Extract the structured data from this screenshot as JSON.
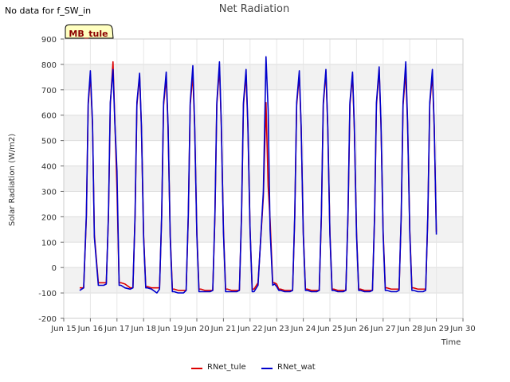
{
  "page": {
    "note": "No data for f_SW_in",
    "badge": "MB_tule"
  },
  "chart_data": {
    "type": "line",
    "title": "Net Radiation",
    "xlabel": "Time",
    "ylabel": "Solar Radiation (W/m2)",
    "xlim": [
      15,
      30
    ],
    "ylim": [
      -200,
      900
    ],
    "x_ticks": [
      15,
      16,
      17,
      18,
      19,
      20,
      21,
      22,
      23,
      24,
      25,
      26,
      27,
      28,
      29,
      30
    ],
    "x_tick_labels": [
      "Jun 15",
      "Jun 16",
      "Jun 17",
      "Jun 18",
      "Jun 19",
      "Jun 20",
      "Jun 21",
      "Jun 22",
      "Jun 23",
      "Jun 24",
      "Jun 25",
      "Jun 26",
      "Jun 27",
      "Jun 28",
      "Jun 29",
      "Jun 30"
    ],
    "y_ticks": [
      -200,
      -100,
      0,
      100,
      200,
      300,
      400,
      500,
      600,
      700,
      800,
      900
    ],
    "grid": true,
    "legend_position": "bottom-center",
    "series": [
      {
        "name": "RNet_tule",
        "color": "#dd0000",
        "x": [
          15.6,
          15.75,
          15.85,
          15.92,
          16.0,
          16.08,
          16.15,
          16.3,
          16.5,
          16.6,
          16.68,
          16.75,
          16.85,
          16.92,
          17.0,
          17.08,
          17.15,
          17.3,
          17.5,
          17.6,
          17.68,
          17.75,
          17.85,
          17.92,
          18.0,
          18.08,
          18.15,
          18.3,
          18.5,
          18.6,
          18.68,
          18.75,
          18.85,
          18.92,
          19.0,
          19.08,
          19.15,
          19.3,
          19.5,
          19.6,
          19.68,
          19.75,
          19.85,
          19.92,
          20.0,
          20.08,
          20.15,
          20.3,
          20.5,
          20.6,
          20.68,
          20.75,
          20.85,
          20.92,
          21.0,
          21.08,
          21.15,
          21.3,
          21.5,
          21.6,
          21.68,
          21.75,
          21.85,
          21.92,
          22.0,
          22.08,
          22.15,
          22.3,
          22.5,
          22.6,
          22.68,
          22.75,
          22.85,
          22.92,
          23.0,
          23.08,
          23.15,
          23.3,
          23.5,
          23.6,
          23.68,
          23.75,
          23.85,
          23.92,
          24.0,
          24.08,
          24.15,
          24.3,
          24.5,
          24.6,
          24.68,
          24.75,
          24.85,
          24.92,
          25.0,
          25.08,
          25.15,
          25.3,
          25.5,
          25.6,
          25.68,
          25.75,
          25.85,
          25.92,
          26.0,
          26.08,
          26.15,
          26.3,
          26.5,
          26.6,
          26.68,
          26.75,
          26.85,
          26.92,
          27.0,
          27.08,
          27.15,
          27.3,
          27.5,
          27.6,
          27.68,
          27.75,
          27.85,
          27.92,
          28.0,
          28.08,
          28.15,
          28.3,
          28.5,
          28.6,
          28.68,
          28.75,
          28.85,
          28.92,
          29.0
        ],
        "y": [
          -80,
          -80,
          200,
          640,
          760,
          560,
          130,
          -60,
          -60,
          -60,
          200,
          640,
          810,
          580,
          310,
          -60,
          -60,
          -65,
          -80,
          -80,
          200,
          640,
          755,
          550,
          130,
          -75,
          -75,
          -80,
          -80,
          -80,
          200,
          640,
          750,
          550,
          130,
          -85,
          -85,
          -90,
          -90,
          -90,
          200,
          640,
          760,
          550,
          140,
          -85,
          -85,
          -90,
          -90,
          -90,
          200,
          640,
          790,
          560,
          150,
          -85,
          -85,
          -90,
          -90,
          -90,
          200,
          640,
          760,
          550,
          150,
          -85,
          -85,
          -60,
          280,
          650,
          320,
          190,
          -60,
          -60,
          -65,
          -85,
          -85,
          -90,
          -90,
          -90,
          200,
          640,
          760,
          550,
          140,
          -85,
          -85,
          -90,
          -90,
          -90,
          200,
          640,
          770,
          550,
          140,
          -85,
          -85,
          -90,
          -90,
          -90,
          200,
          640,
          760,
          540,
          140,
          -85,
          -85,
          -90,
          -90,
          -90,
          200,
          640,
          780,
          560,
          140,
          -80,
          -80,
          -85,
          -85,
          -85,
          200,
          640,
          770,
          560,
          150,
          -80,
          -80,
          -85,
          -85,
          -85,
          200,
          640,
          760,
          550,
          140
        ]
      },
      {
        "name": "RNet_wat",
        "color": "#0000cc",
        "x": [
          15.6,
          15.75,
          15.85,
          15.92,
          16.0,
          16.08,
          16.15,
          16.3,
          16.5,
          16.6,
          16.68,
          16.75,
          16.85,
          16.92,
          17.0,
          17.08,
          17.15,
          17.3,
          17.5,
          17.6,
          17.68,
          17.75,
          17.85,
          17.92,
          18.0,
          18.08,
          18.15,
          18.3,
          18.5,
          18.6,
          18.68,
          18.75,
          18.85,
          18.92,
          19.0,
          19.08,
          19.15,
          19.3,
          19.5,
          19.6,
          19.68,
          19.75,
          19.85,
          19.92,
          20.0,
          20.08,
          20.15,
          20.3,
          20.5,
          20.6,
          20.68,
          20.75,
          20.85,
          20.92,
          21.0,
          21.08,
          21.15,
          21.3,
          21.5,
          21.6,
          21.68,
          21.75,
          21.85,
          21.92,
          22.0,
          22.08,
          22.15,
          22.3,
          22.5,
          22.6,
          22.68,
          22.75,
          22.85,
          22.92,
          23.0,
          23.08,
          23.15,
          23.3,
          23.5,
          23.6,
          23.68,
          23.75,
          23.85,
          23.92,
          24.0,
          24.08,
          24.15,
          24.3,
          24.5,
          24.6,
          24.68,
          24.75,
          24.85,
          24.92,
          25.0,
          25.08,
          25.15,
          25.3,
          25.5,
          25.6,
          25.68,
          25.75,
          25.85,
          25.92,
          26.0,
          26.08,
          26.15,
          26.3,
          26.5,
          26.6,
          26.68,
          26.75,
          26.85,
          26.92,
          27.0,
          27.08,
          27.15,
          27.3,
          27.5,
          27.6,
          27.68,
          27.75,
          27.85,
          27.92,
          28.0,
          28.08,
          28.15,
          28.3,
          28.5,
          28.6,
          28.68,
          28.75,
          28.85,
          28.92,
          29.0
        ],
        "y": [
          -90,
          -80,
          210,
          650,
          775,
          570,
          120,
          -70,
          -70,
          -65,
          210,
          650,
          780,
          570,
          380,
          -70,
          -70,
          -80,
          -85,
          -80,
          210,
          650,
          765,
          555,
          120,
          -80,
          -80,
          -85,
          -100,
          -85,
          210,
          650,
          770,
          560,
          120,
          -95,
          -95,
          -100,
          -100,
          -90,
          210,
          650,
          795,
          560,
          130,
          -95,
          -95,
          -95,
          -95,
          -90,
          210,
          650,
          810,
          570,
          140,
          -95,
          -95,
          -95,
          -95,
          -90,
          210,
          650,
          780,
          560,
          150,
          -95,
          -95,
          -70,
          300,
          830,
          620,
          150,
          -70,
          -65,
          -75,
          -90,
          -90,
          -95,
          -95,
          -90,
          210,
          650,
          775,
          560,
          130,
          -90,
          -90,
          -95,
          -95,
          -90,
          210,
          650,
          780,
          560,
          130,
          -90,
          -90,
          -95,
          -95,
          -90,
          210,
          650,
          770,
          550,
          130,
          -90,
          -90,
          -95,
          -95,
          -90,
          210,
          650,
          790,
          570,
          130,
          -90,
          -90,
          -95,
          -95,
          -90,
          210,
          650,
          810,
          570,
          140,
          -90,
          -90,
          -95,
          -95,
          -90,
          210,
          650,
          780,
          560,
          130
        ]
      }
    ]
  }
}
